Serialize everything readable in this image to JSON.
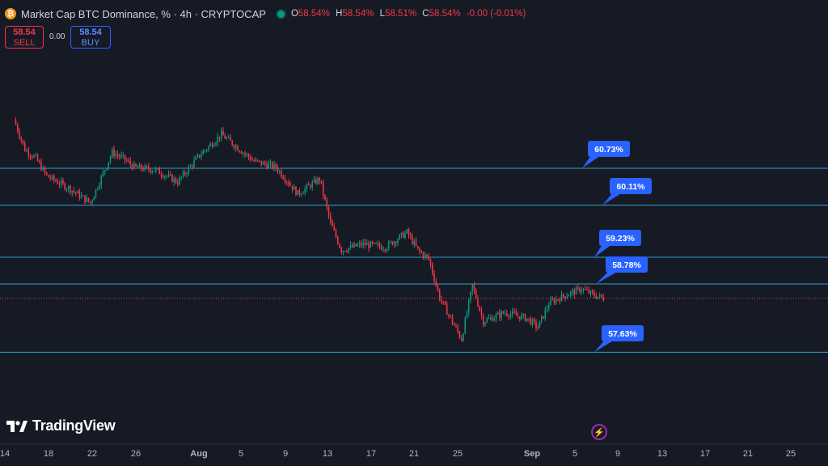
{
  "header": {
    "symbol": "Market Cap BTC Dominance, % · 4h · CRYPTOCAP",
    "icon": "bitcoin-icon",
    "open": "58.54%",
    "high": "58.54%",
    "low": "58.51%",
    "close": "58.54%",
    "change": "-0.00 (-0.01%)",
    "o_label": "O",
    "h_label": "H",
    "l_label": "L",
    "c_label": "C"
  },
  "trade": {
    "sell_price": "58.54",
    "sell_label": "SELL",
    "buy_price": "58.54",
    "buy_label": "BUY",
    "spread": "0.00"
  },
  "brand": "TradingView",
  "colors": {
    "background": "#161a25",
    "up": "#089981",
    "down": "#f23645",
    "level_line": "#2ea3c7",
    "callout": "#2962ff"
  },
  "chart_data": {
    "type": "candlestick",
    "timeframe": "4h",
    "x_tick_labels": [
      "14",
      "18",
      "22",
      "26",
      "Aug",
      "5",
      "9",
      "13",
      "17",
      "21",
      "25",
      "Sep",
      "5",
      "9",
      "13",
      "17",
      "21",
      "25"
    ],
    "price_path": [
      {
        "day": "Jul 15",
        "value": 61.55
      },
      {
        "day": "Jul 16",
        "value": 61.05
      },
      {
        "day": "Jul 17",
        "value": 60.9
      },
      {
        "day": "Jul 18",
        "value": 60.6
      },
      {
        "day": "Jul 20",
        "value": 60.4
      },
      {
        "day": "Jul 22",
        "value": 60.15
      },
      {
        "day": "Jul 24",
        "value": 61.0
      },
      {
        "day": "Jul 25",
        "value": 60.9
      },
      {
        "day": "Jul 26",
        "value": 60.75
      },
      {
        "day": "Jul 28",
        "value": 60.7
      },
      {
        "day": "Jul 30",
        "value": 60.5
      },
      {
        "day": "Aug 1",
        "value": 60.95
      },
      {
        "day": "Aug 3",
        "value": 61.3
      },
      {
        "day": "Aug 5",
        "value": 61.0
      },
      {
        "day": "Aug 6",
        "value": 60.85
      },
      {
        "day": "Aug 8",
        "value": 60.75
      },
      {
        "day": "Aug 10",
        "value": 60.3
      },
      {
        "day": "Aug 12",
        "value": 60.55
      },
      {
        "day": "Aug 13",
        "value": 59.8
      },
      {
        "day": "Aug 14",
        "value": 59.35
      },
      {
        "day": "Aug 16",
        "value": 59.45
      },
      {
        "day": "Aug 18",
        "value": 59.4
      },
      {
        "day": "Aug 20",
        "value": 59.65
      },
      {
        "day": "Aug 21",
        "value": 59.35
      },
      {
        "day": "Aug 22",
        "value": 59.2
      },
      {
        "day": "Aug 23",
        "value": 58.55
      },
      {
        "day": "Aug 25",
        "value": 57.85
      },
      {
        "day": "Aug 26",
        "value": 58.75
      },
      {
        "day": "Aug 27",
        "value": 58.15
      },
      {
        "day": "Aug 29",
        "value": 58.3
      },
      {
        "day": "Aug 31",
        "value": 58.2
      },
      {
        "day": "Sep 1",
        "value": 58.05
      },
      {
        "day": "Sep 2",
        "value": 58.45
      },
      {
        "day": "Sep 3",
        "value": 58.55
      },
      {
        "day": "Sep 5",
        "value": 58.7
      },
      {
        "day": "Sep 6",
        "value": 58.6
      },
      {
        "day": "Sep 7",
        "value": 58.54
      }
    ],
    "last_price": 58.54,
    "horizontal_levels": [
      {
        "label": "60.73%",
        "value": 60.73
      },
      {
        "label": "60.11%",
        "value": 60.11
      },
      {
        "label": "59.23%",
        "value": 59.23
      },
      {
        "label": "58.78%",
        "value": 58.78
      },
      {
        "label": "57.63%",
        "value": 57.63
      }
    ]
  }
}
